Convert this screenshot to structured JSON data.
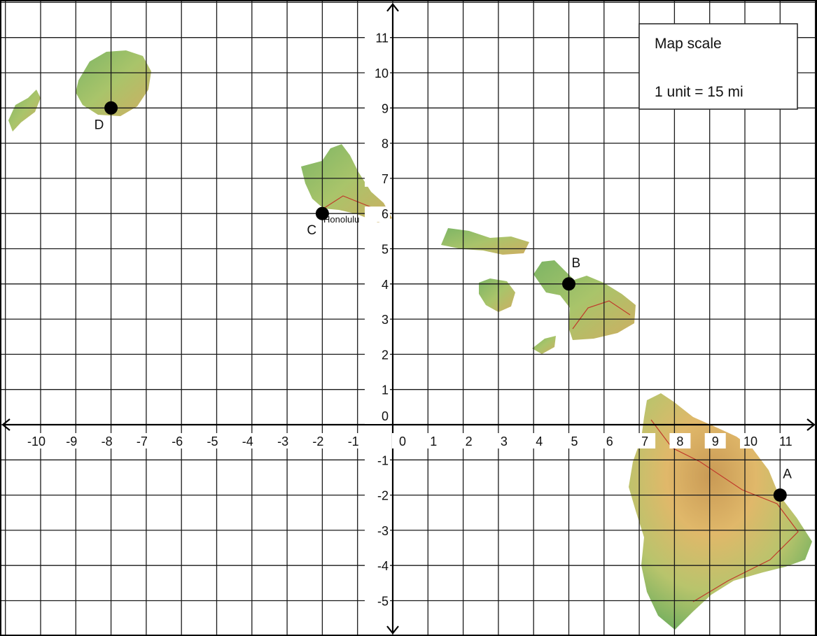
{
  "map": {
    "x_range": [
      -11,
      12
    ],
    "y_range": [
      -6,
      12
    ],
    "x_tick_labels": [
      "-10",
      "-9",
      "-8",
      "-7",
      "-6",
      "-5",
      "-4",
      "-3",
      "-2",
      "-1",
      "0",
      "1",
      "2",
      "3",
      "4",
      "5",
      "6",
      "7",
      "8",
      "9",
      "10",
      "11"
    ],
    "y_tick_labels": [
      "11",
      "10",
      "9",
      "8",
      "7",
      "6",
      "5",
      "4",
      "3",
      "2",
      "1",
      "0",
      "-1",
      "-2",
      "-3",
      "-4",
      "-5"
    ],
    "points": [
      {
        "label": "A",
        "x": 11,
        "y": -2
      },
      {
        "label": "B",
        "x": 5,
        "y": 4
      },
      {
        "label": "C",
        "x": -2,
        "y": 6
      },
      {
        "label": "D",
        "x": -8,
        "y": 9
      }
    ],
    "city_label": "Honolulu",
    "scale": {
      "title": "Map scale",
      "text": "1 unit = 15 mi"
    },
    "colors": {
      "land_low": "#6fae5e",
      "land_mid": "#a8c56a",
      "land_high": "#d9a85a",
      "road": "#c0392b",
      "point": "#000000"
    }
  }
}
